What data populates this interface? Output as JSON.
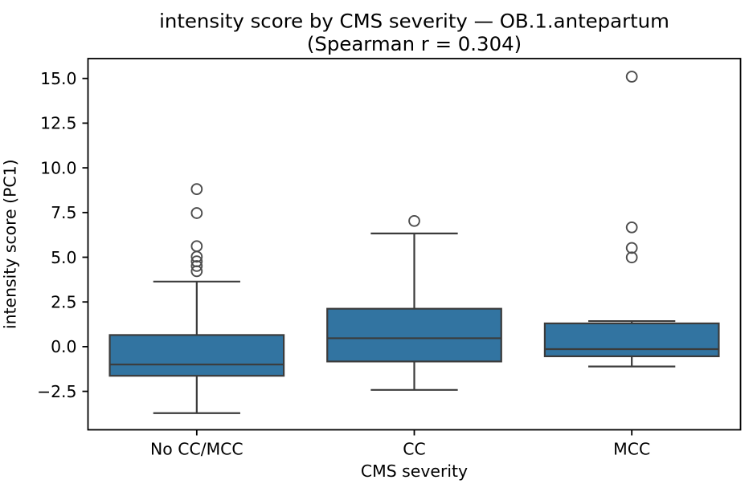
{
  "chart_data": {
    "type": "box",
    "title": "intensity score by CMS severity — OB.1.antepartum",
    "subtitle": "(Spearman r = 0.304)",
    "xlabel": "CMS severity",
    "ylabel": "intensity score (PC1)",
    "categories": [
      "No CC/MCC",
      "CC",
      "MCC"
    ],
    "boxes": [
      {
        "category": "No CC/MCC",
        "whisker_low": -3.72,
        "q1": -1.63,
        "median": -1.0,
        "q3": 0.65,
        "whisker_high": 3.64,
        "outliers": [
          4.22,
          4.51,
          4.77,
          5.03,
          5.62,
          7.47,
          8.81
        ]
      },
      {
        "category": "CC",
        "whisker_low": -2.42,
        "q1": -0.83,
        "median": 0.47,
        "q3": 2.12,
        "whisker_high": 6.33,
        "outliers": [
          7.03
        ]
      },
      {
        "category": "MCC",
        "whisker_low": -1.11,
        "q1": -0.54,
        "median": -0.14,
        "q3": 1.3,
        "whisker_high": 1.43,
        "outliers": [
          4.99,
          5.52,
          6.67,
          15.1
        ]
      }
    ],
    "yticks": [
      {
        "value": 15.0,
        "label": "15.0"
      },
      {
        "value": 12.5,
        "label": "12.5"
      },
      {
        "value": 10.0,
        "label": "10.0"
      },
      {
        "value": 7.5,
        "label": "7.5"
      },
      {
        "value": 5.0,
        "label": "5.0"
      },
      {
        "value": 2.5,
        "label": "2.5"
      },
      {
        "value": 0.0,
        "label": "0.0"
      },
      {
        "value": -2.5,
        "label": "−2.5"
      }
    ],
    "ylim": [
      -4.65,
      16.11
    ],
    "xlim": [
      -0.5,
      2.5
    ],
    "box_width": 0.8,
    "cap_width": 0.4,
    "legend": "off",
    "grid": "off",
    "colors": {
      "box_fill": "#3274a1",
      "box_line": "#3b3b3b",
      "flier_edge": "#4c4c4c",
      "axis": "#000000",
      "background": "#ffffff"
    }
  }
}
